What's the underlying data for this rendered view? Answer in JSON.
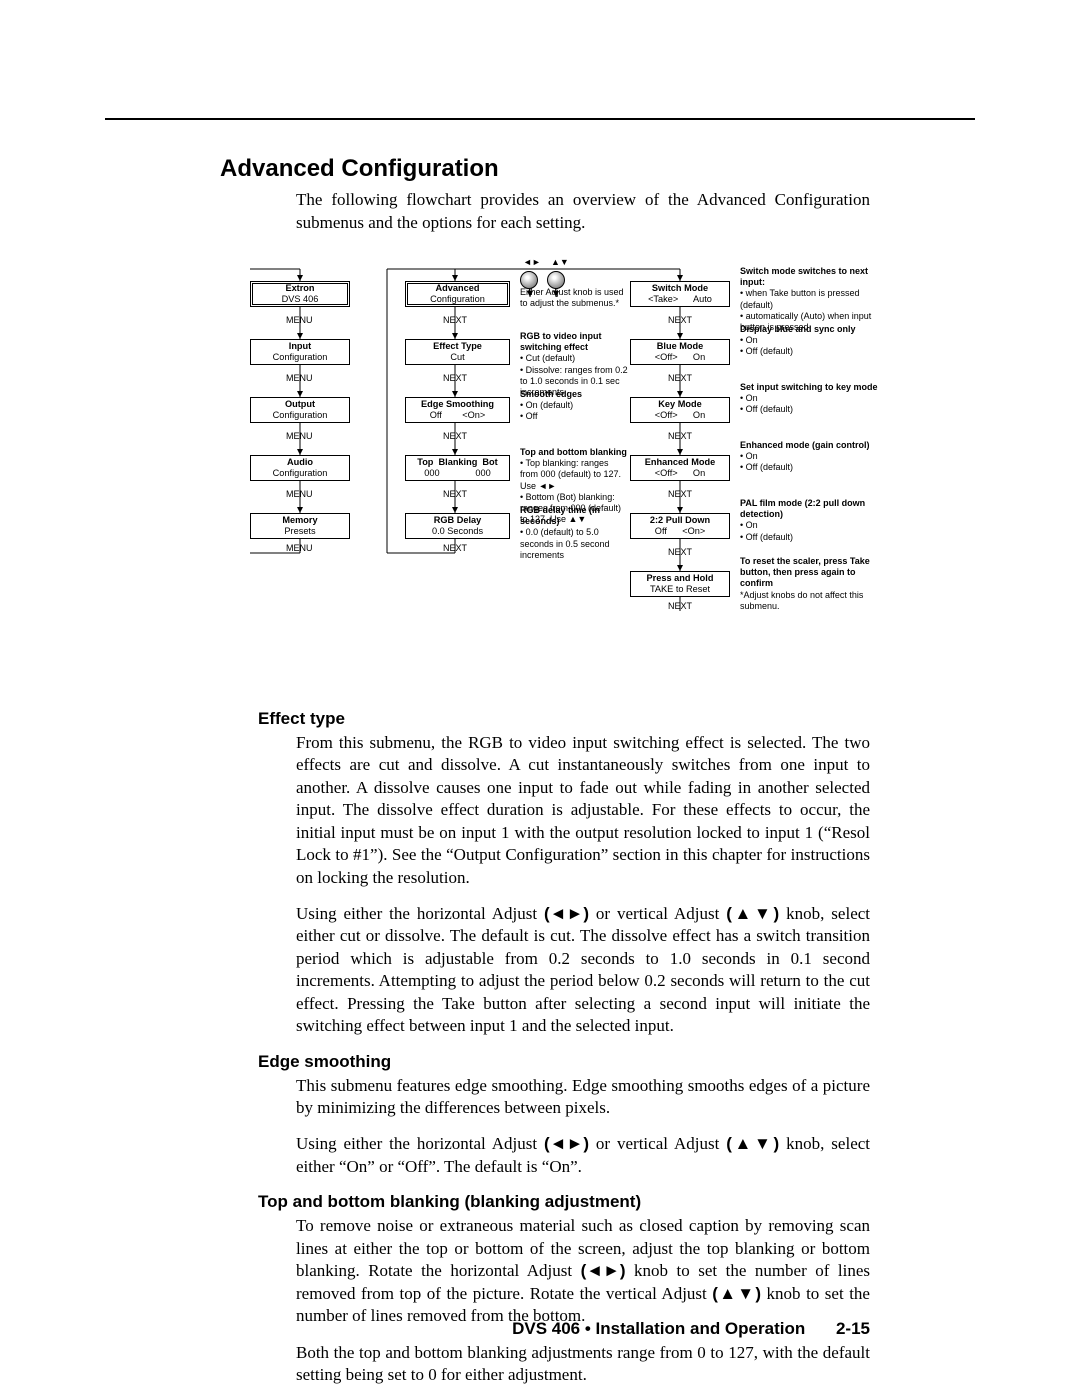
{
  "title": "Advanced Configuration",
  "intro": "The following flowchart provides an overview of the Advanced Configuration submenus and the options for each setting.",
  "flow": {
    "menu_label": "MENU",
    "next_label": "NEXT",
    "col1": [
      {
        "l1": "Extron",
        "l2": "DVS 406",
        "heavy": true
      },
      {
        "l1": "Input",
        "l2": "Configuration"
      },
      {
        "l1": "Output",
        "l2": "Configuration"
      },
      {
        "l1": "Audio",
        "l2": "Configuration"
      },
      {
        "l1": "Memory",
        "l2": "Presets"
      }
    ],
    "col2": [
      {
        "l1": "Advanced",
        "l2": "Configuration",
        "heavy": true
      },
      {
        "l1": "Effect Type",
        "l2": "Cut"
      },
      {
        "l1": "Edge Smoothing",
        "l2": "Off        <On>"
      },
      {
        "l1": "Top  Blanking  Bot",
        "l2": "000              000"
      },
      {
        "l1": "RGB Delay",
        "l2": "0.0 Seconds"
      }
    ],
    "col3": [
      {
        "l1": "Switch Mode",
        "l2": "<Take>      Auto"
      },
      {
        "l1": "Blue Mode",
        "l2": "<Off>      On"
      },
      {
        "l1": "Key Mode",
        "l2": "<Off>      On"
      },
      {
        "l1": "Enhanced Mode",
        "l2": "<Off>      On"
      },
      {
        "l1": "2:2 Pull Down",
        "l2": "Off      <On>"
      },
      {
        "l1": "Press and Hold",
        "l2": "TAKE to Reset"
      }
    ],
    "knob_note": "Either Adjust knob is used\nto adjust the submenus.*",
    "desc2": [
      {
        "hd": "RGB to video input switching effect",
        "body": "• Cut (default)\n• Dissolve: ranges from 0.2 to 1.0 seconds in 0.1 sec increments"
      },
      {
        "hd": "Smooth edges",
        "body": "• On (default)\n• Off"
      },
      {
        "hd": "Top and bottom blanking",
        "body": "• Top blanking: ranges from 000 (default) to 127.\n  Use ◄►\n• Bottom (Bot) blanking: ranges from 000 (default) to 127.  Use ▲▼"
      },
      {
        "hd": "RGB delay time (in seconds)",
        "body": "• 0.0 (default) to 5.0 seconds in 0.5 second increments"
      }
    ],
    "desc3": [
      {
        "hd": "Switch mode switches to next input:",
        "body": "• when Take button is pressed (default)\n• automatically (Auto) when input button is pressed"
      },
      {
        "hd": "Display blue and sync only",
        "body": "• On\n• Off (default)"
      },
      {
        "hd": "Set input switching to key mode",
        "body": "• On\n• Off (default)"
      },
      {
        "hd": "Enhanced mode (gain control)",
        "body": "• On\n• Off (default)"
      },
      {
        "hd": "PAL film mode (2:2 pull down detection)",
        "body": "• On\n• Off (default)"
      },
      {
        "hd": "To reset the scaler, press Take button, then press again to confirm",
        "body": "*Adjust knobs do not affect this submenu."
      }
    ],
    "hv_glyphs": {
      "h": "◄►",
      "v": "▲▼"
    }
  },
  "sections": [
    {
      "heading": "Effect type",
      "paras": [
        "From this submenu, the RGB to video input switching effect is selected.  The two effects are cut and dissolve.  A cut instantaneously switches from one input to another.  A dissolve causes one input to fade out while fading in another selected input.  The dissolve effect duration is adjustable.  For these effects to occur, the initial input must be on input 1 with the output resolution locked to input 1 (“Resol Lock to #1”).  See the “Output Configuration” section in this chapter for instructions on locking the resolution.",
        "Using either the horizontal Adjust (◄►) or vertical Adjust (▲▼) knob, select either cut or dissolve.  The default is cut.  The dissolve effect has a switch transition period which is adjustable from 0.2 seconds to 1.0 seconds in 0.1 second increments.  Attempting to adjust the period below 0.2 seconds will return to the cut effect.  Pressing the Take button after selecting a second input will initiate the switching effect between input 1 and the selected input."
      ]
    },
    {
      "heading": "Edge smoothing",
      "paras": [
        "This submenu features edge smoothing.  Edge smoothing smooths edges of a picture by minimizing the differences between pixels.",
        "Using either the horizontal Adjust (◄►) or vertical Adjust (▲▼) knob, select either “On” or “Off”.  The default is “On”."
      ]
    },
    {
      "heading": "Top and bottom blanking (blanking adjustment)",
      "paras": [
        "To remove noise or extraneous material such as closed caption by removing scan lines at either the top or bottom of the screen, adjust the top blanking or bottom blanking.  Rotate the horizontal Adjust (◄►) knob to set the number of lines removed from top of the picture.  Rotate the vertical Adjust (▲▼) knob to set the number of lines removed from the bottom.",
        "Both the top and bottom blanking adjustments range from 0 to 127, with the default setting being set to 0 for either adjustment."
      ]
    }
  ],
  "footer": {
    "doc": "DVS 406 • Installation and Operation",
    "page": "2-15"
  }
}
